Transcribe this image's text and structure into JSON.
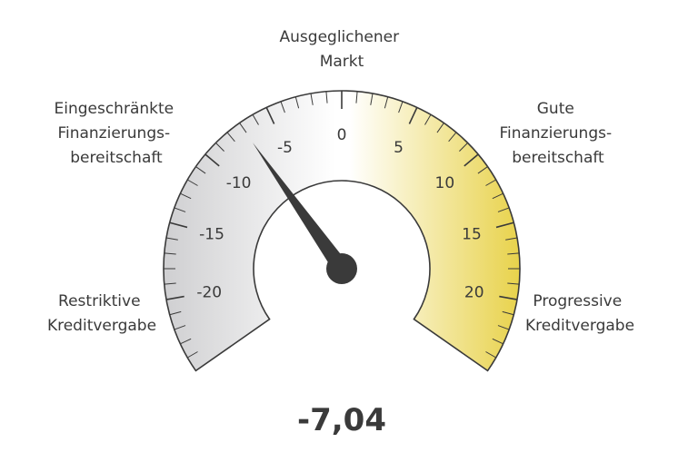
{
  "chart_data": {
    "type": "gauge",
    "value": -7.04,
    "value_label": "-7,04",
    "range": [
      -25,
      25
    ],
    "tick_labels": [
      "-20",
      "-15",
      "-10",
      "-5",
      "0",
      "5",
      "10",
      "15",
      "20"
    ],
    "tick_values": [
      -20,
      -15,
      -10,
      -5,
      0,
      5,
      10,
      15,
      20
    ],
    "zones": [
      {
        "label_lines": [
          "Restriktive",
          "Kreditvergabe"
        ]
      },
      {
        "label_lines": [
          "Eingeschränkte",
          "Finanzierungs-",
          "bereitschaft"
        ]
      },
      {
        "label_lines": [
          "Ausgeglichener",
          "Markt"
        ]
      },
      {
        "label_lines": [
          "Gute",
          "Finanzierungs-",
          "bereitschaft"
        ]
      },
      {
        "label_lines": [
          "Progressive",
          "Kreditvergabe"
        ]
      }
    ],
    "colors": {
      "negative": "#cfcfd1",
      "neutral": "#ffffff",
      "positive": "#e8d24a",
      "outline": "#3a3a3a",
      "needle": "#3a3a3a"
    }
  }
}
